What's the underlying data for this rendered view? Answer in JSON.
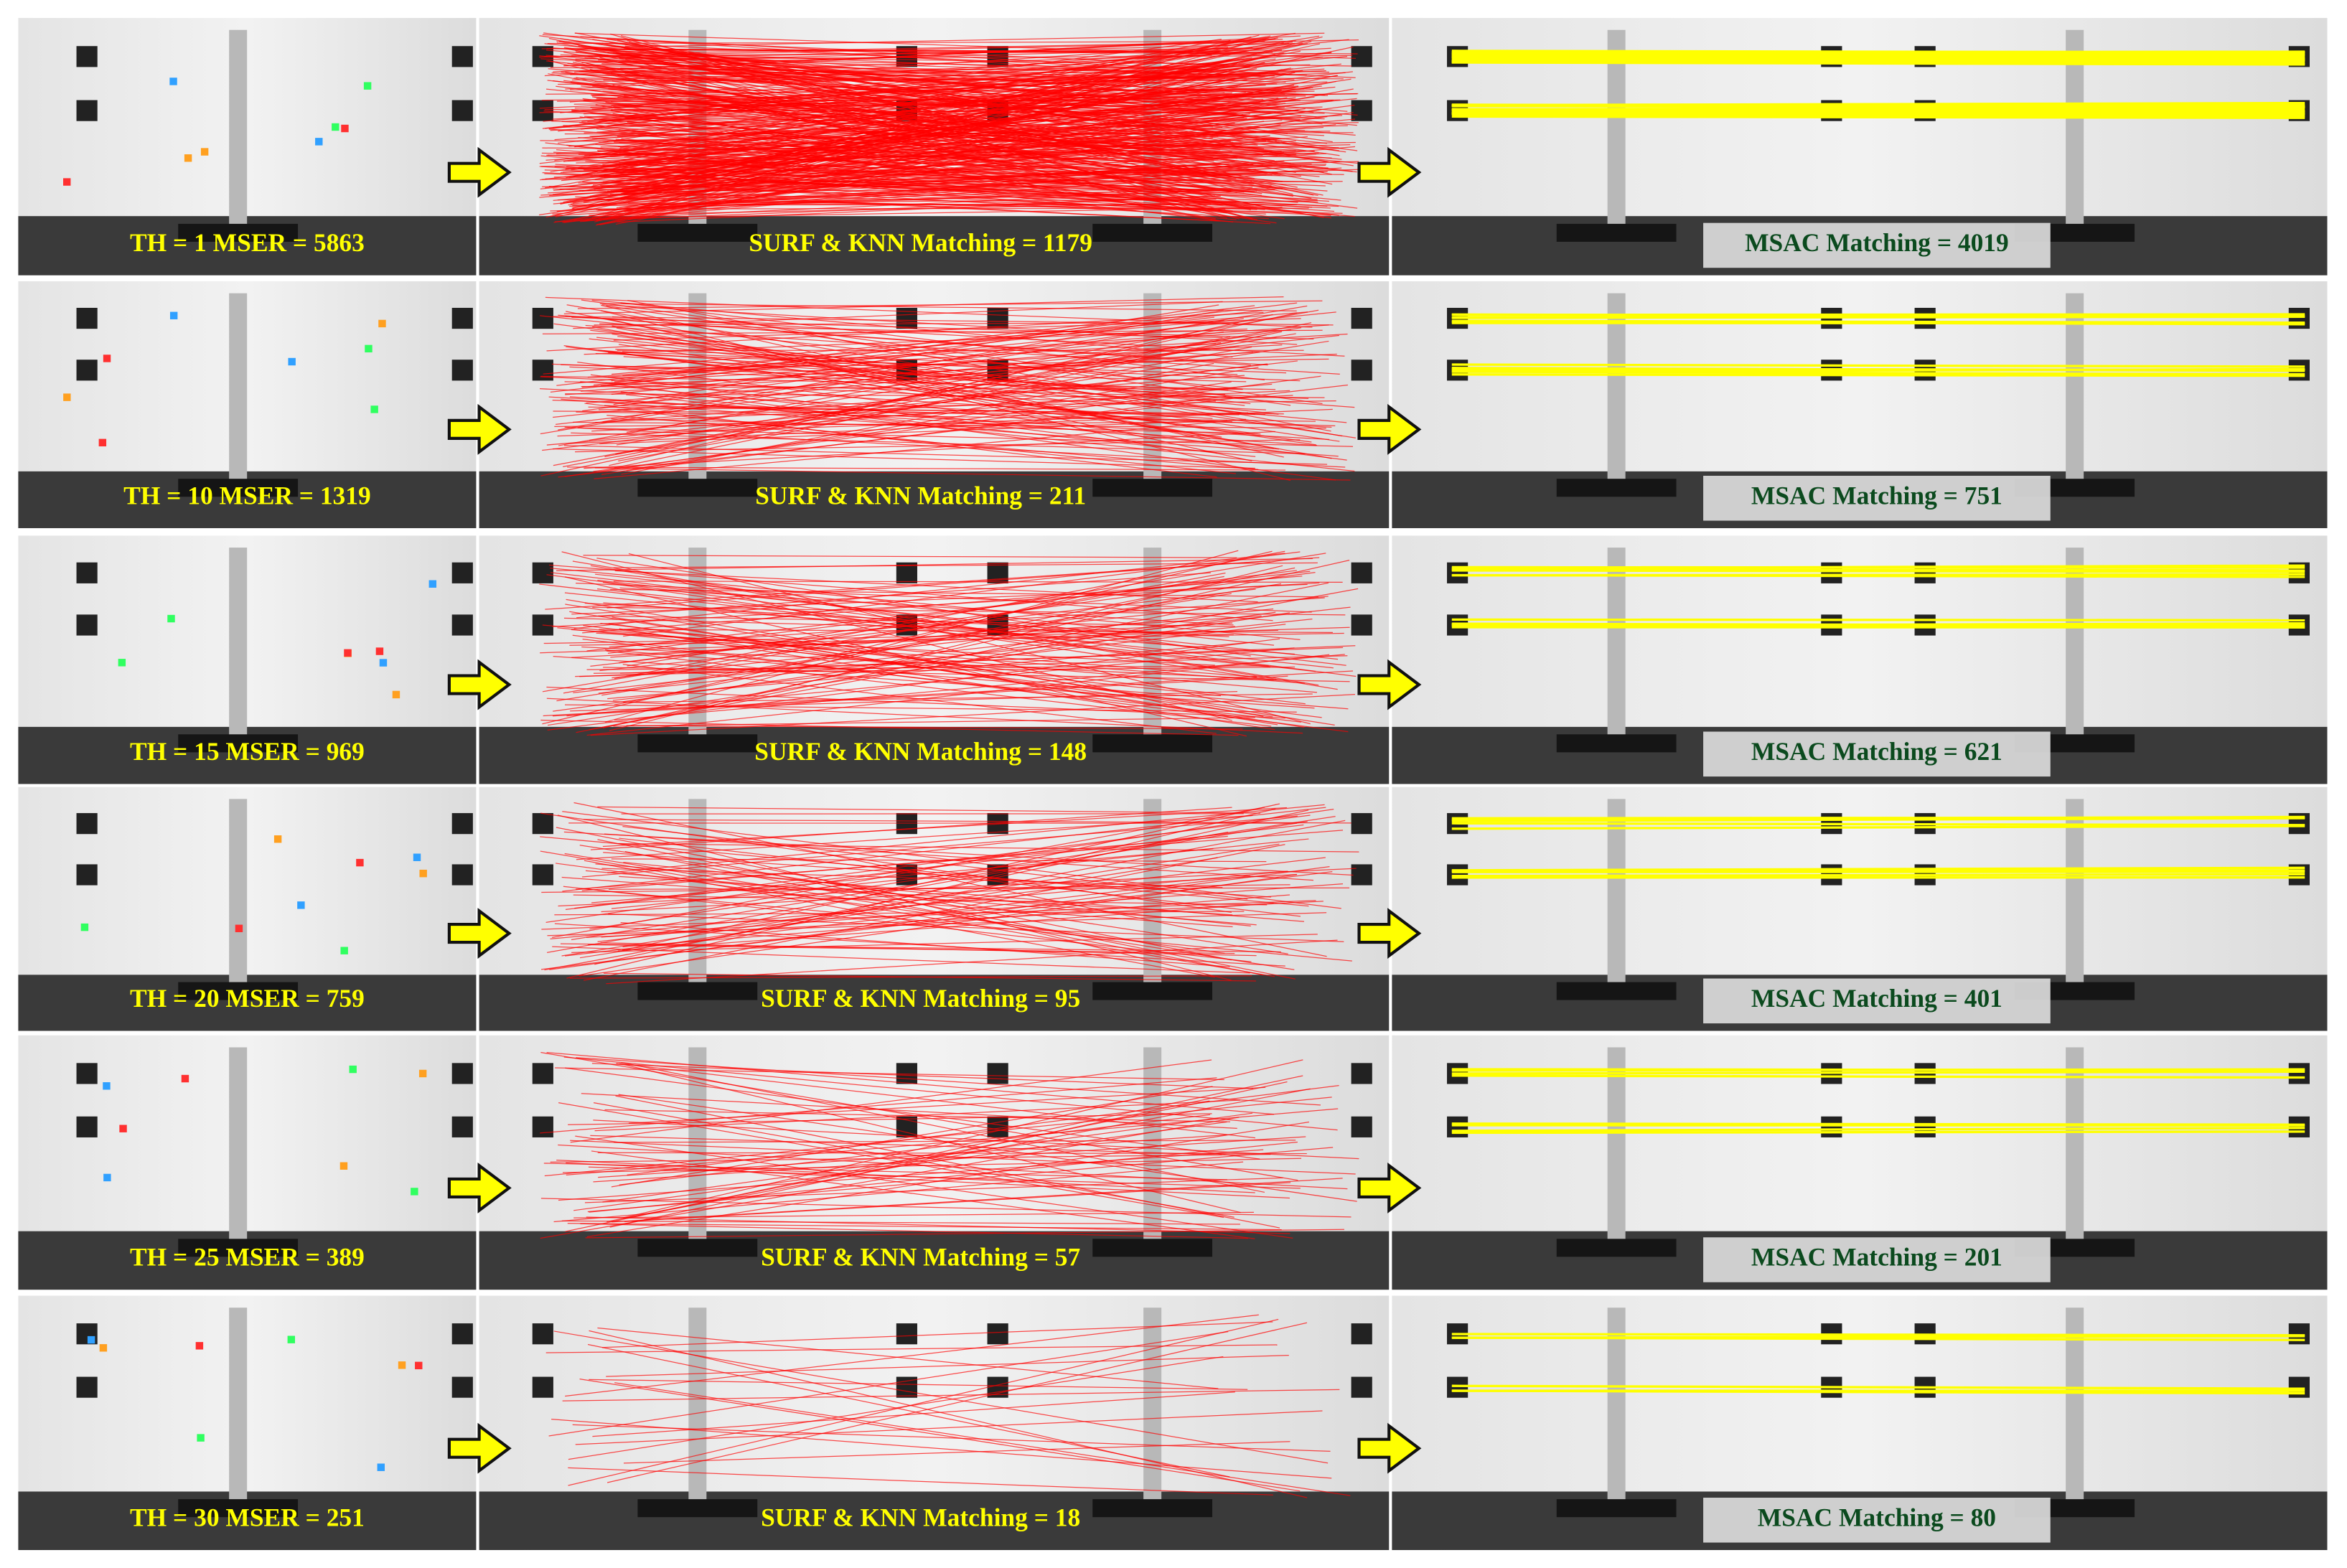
{
  "rows": [
    {
      "mser": "TH = 1 MSER = 5863",
      "surf": "SURF & KNN Matching = 1179",
      "msac": "MSAC Matching = 4019"
    },
    {
      "mser": "TH = 10 MSER = 1319",
      "surf": "SURF & KNN Matching = 211",
      "msac": "MSAC Matching = 751"
    },
    {
      "mser": "TH = 15 MSER = 969",
      "surf": "SURF & KNN Matching = 148",
      "msac": "MSAC Matching = 621"
    },
    {
      "mser": "TH = 20 MSER = 759",
      "surf": "SURF & KNN Matching = 95",
      "msac": "MSAC Matching = 401"
    },
    {
      "mser": "TH = 25 MSER = 389",
      "surf": "SURF & KNN Matching = 57",
      "msac": "MSAC Matching = 201"
    },
    {
      "mser": "TH = 30 MSER = 251",
      "surf": "SURF & KNN Matching = 18",
      "msac": "MSAC Matching = 80"
    }
  ]
}
